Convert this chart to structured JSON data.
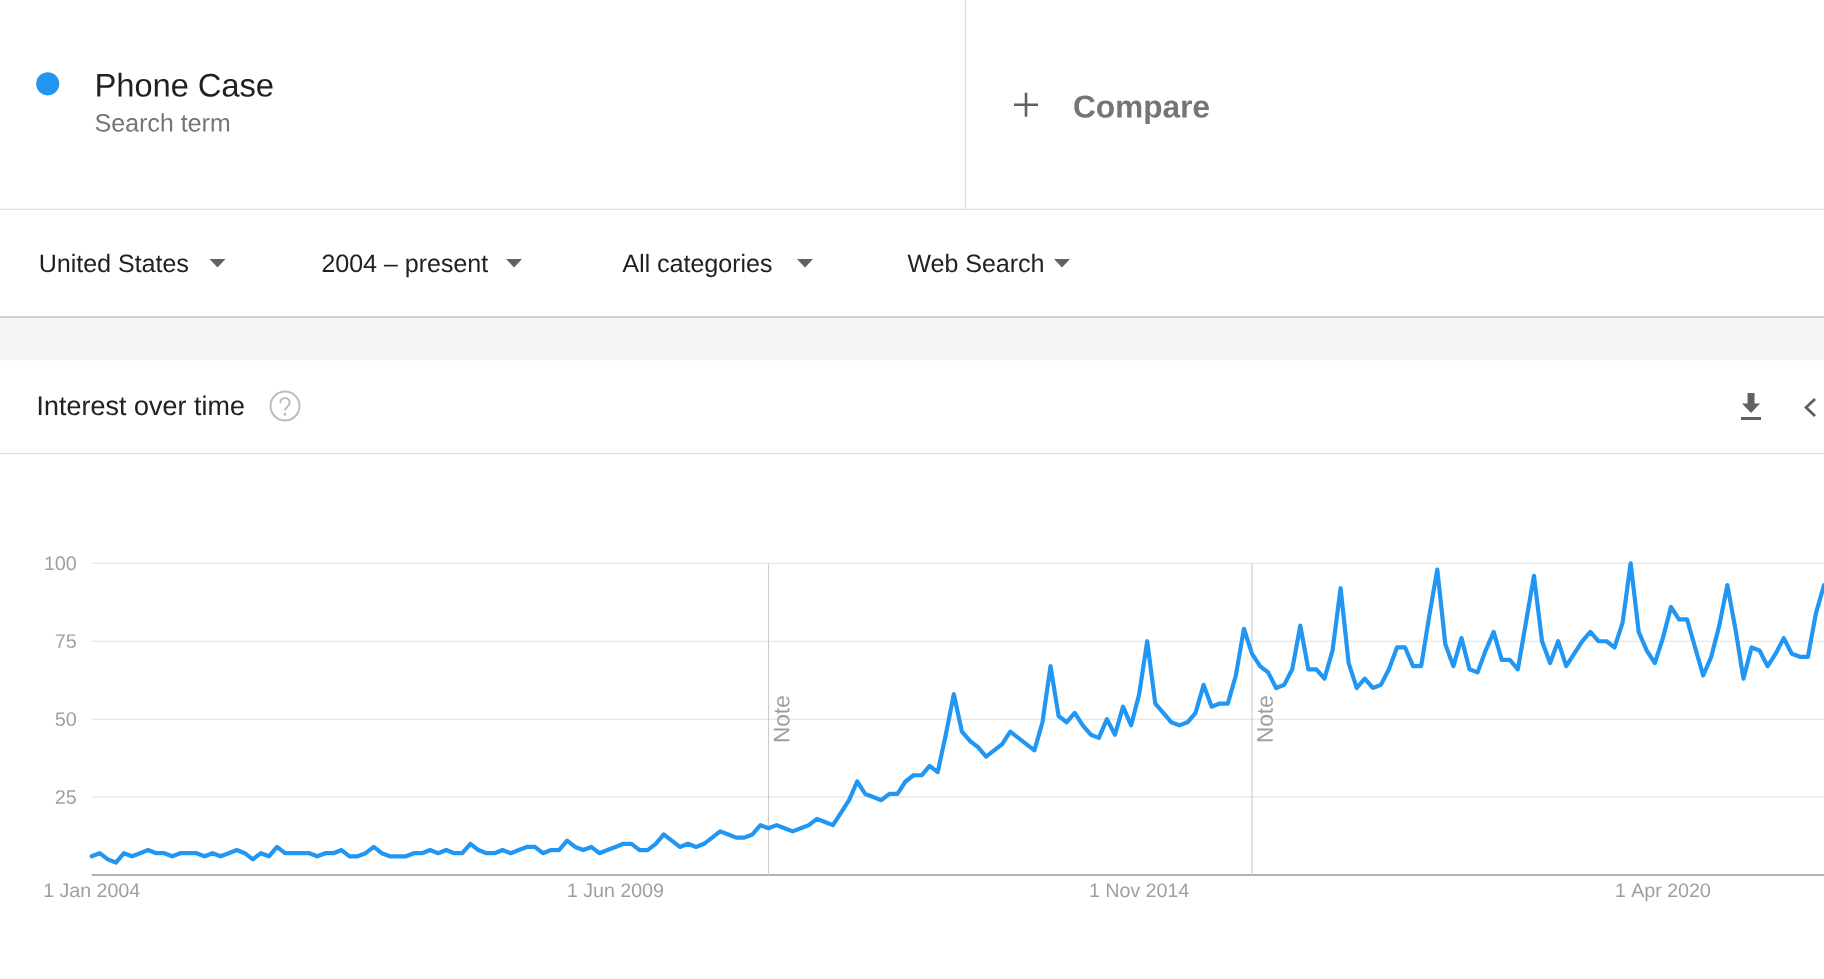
{
  "chart_data": {
    "type": "line",
    "title": "Interest over time",
    "annotations": [
      "Search term",
      "Compare",
      "United States",
      "2004 – present",
      "All categories",
      "Web Search"
    ],
    "x": [
      "2004-01",
      "2004-02",
      "2004-03",
      "2004-04",
      "2004-05",
      "2004-06",
      "2004-07",
      "2004-08",
      "2004-09",
      "2004-10",
      "2004-11",
      "2004-12",
      "2005-01",
      "2005-02",
      "2005-03",
      "2005-04",
      "2005-05",
      "2005-06",
      "2005-07",
      "2005-08",
      "2005-09",
      "2005-10",
      "2005-11",
      "2005-12",
      "2006-01",
      "2006-02",
      "2006-03",
      "2006-04",
      "2006-05",
      "2006-06",
      "2006-07",
      "2006-08",
      "2006-09",
      "2006-10",
      "2006-11",
      "2006-12",
      "2007-01",
      "2007-02",
      "2007-03",
      "2007-04",
      "2007-05",
      "2007-06",
      "2007-07",
      "2007-08",
      "2007-09",
      "2007-10",
      "2007-11",
      "2007-12",
      "2008-01",
      "2008-02",
      "2008-03",
      "2008-04",
      "2008-05",
      "2008-06",
      "2008-07",
      "2008-08",
      "2008-09",
      "2008-10",
      "2008-11",
      "2008-12",
      "2009-01",
      "2009-02",
      "2009-03",
      "2009-04",
      "2009-05",
      "2009-06",
      "2009-07",
      "2009-08",
      "2009-09",
      "2009-10",
      "2009-11",
      "2009-12",
      "2010-01",
      "2010-02",
      "2010-03",
      "2010-04",
      "2010-05",
      "2010-06",
      "2010-07",
      "2010-08",
      "2010-09",
      "2010-10",
      "2010-11",
      "2010-12",
      "2011-01",
      "2011-02",
      "2011-03",
      "2011-04",
      "2011-05",
      "2011-06",
      "2011-07",
      "2011-08",
      "2011-09",
      "2011-10",
      "2011-11",
      "2011-12",
      "2012-01",
      "2012-02",
      "2012-03",
      "2012-04",
      "2012-05",
      "2012-06",
      "2012-07",
      "2012-08",
      "2012-09",
      "2012-10",
      "2012-11",
      "2012-12",
      "2013-01",
      "2013-02",
      "2013-03",
      "2013-04",
      "2013-05",
      "2013-06",
      "2013-07",
      "2013-08",
      "2013-09",
      "2013-10",
      "2013-11",
      "2013-12",
      "2014-01",
      "2014-02",
      "2014-03",
      "2014-04",
      "2014-05",
      "2014-06",
      "2014-07",
      "2014-08",
      "2014-09",
      "2014-10",
      "2014-11",
      "2014-12",
      "2015-01",
      "2015-02",
      "2015-03",
      "2015-04",
      "2015-05",
      "2015-06",
      "2015-07",
      "2015-08",
      "2015-09",
      "2015-10",
      "2015-11",
      "2015-12",
      "2016-01",
      "2016-02",
      "2016-03",
      "2016-04",
      "2016-05",
      "2016-06",
      "2016-07",
      "2016-08",
      "2016-09",
      "2016-10",
      "2016-11",
      "2016-12",
      "2017-01",
      "2017-02",
      "2017-03",
      "2017-04",
      "2017-05",
      "2017-06",
      "2017-07",
      "2017-08",
      "2017-09",
      "2017-10",
      "2017-11",
      "2017-12",
      "2018-01",
      "2018-02",
      "2018-03",
      "2018-04",
      "2018-05",
      "2018-06",
      "2018-07",
      "2018-08",
      "2018-09",
      "2018-10",
      "2018-11",
      "2018-12",
      "2019-01",
      "2019-02",
      "2019-03",
      "2019-04",
      "2019-05",
      "2019-06",
      "2019-07",
      "2019-08",
      "2019-09",
      "2019-10",
      "2019-11",
      "2019-12",
      "2020-01",
      "2020-02",
      "2020-03",
      "2020-04",
      "2020-05",
      "2020-06",
      "2020-07",
      "2020-08",
      "2020-09",
      "2020-10",
      "2020-11",
      "2020-12",
      "2021-01",
      "2021-02",
      "2021-03",
      "2021-04",
      "2021-05",
      "2021-06",
      "2021-07",
      "2021-08",
      "2021-09",
      "2021-10",
      "2021-11",
      "2021-12"
    ],
    "series": [
      {
        "name": "Phone Case",
        "color": "#2196f3",
        "values": [
          6,
          7,
          5,
          4,
          7,
          6,
          7,
          8,
          7,
          7,
          6,
          7,
          7,
          7,
          6,
          7,
          6,
          7,
          8,
          7,
          5,
          7,
          6,
          9,
          7,
          7,
          7,
          7,
          6,
          7,
          7,
          8,
          6,
          6,
          7,
          9,
          7,
          6,
          6,
          6,
          7,
          7,
          8,
          7,
          8,
          7,
          7,
          10,
          8,
          7,
          7,
          8,
          7,
          8,
          9,
          9,
          7,
          8,
          8,
          11,
          9,
          8,
          9,
          7,
          8,
          9,
          10,
          10,
          8,
          8,
          10,
          13,
          11,
          9,
          10,
          9,
          10,
          12,
          14,
          13,
          12,
          12,
          13,
          16,
          15,
          16,
          15,
          14,
          15,
          16,
          18,
          17,
          16,
          20,
          24,
          30,
          26,
          25,
          24,
          26,
          26,
          30,
          32,
          32,
          35,
          33,
          45,
          58,
          46,
          43,
          41,
          38,
          40,
          42,
          46,
          44,
          42,
          40,
          49,
          67,
          51,
          49,
          52,
          48,
          45,
          44,
          50,
          45,
          54,
          48,
          58,
          75,
          55,
          52,
          49,
          48,
          49,
          52,
          61,
          54,
          55,
          55,
          64,
          79,
          71,
          67,
          65,
          60,
          61,
          66,
          80,
          66,
          66,
          63,
          72,
          92,
          68,
          60,
          63,
          60,
          61,
          66,
          73,
          73,
          67,
          67,
          83,
          98,
          74,
          67,
          76,
          66,
          65,
          72,
          78,
          69,
          69,
          66,
          81,
          96,
          75,
          68,
          75,
          67,
          71,
          75,
          78,
          75,
          75,
          73,
          81,
          100,
          78,
          72,
          68,
          76,
          86,
          82,
          82,
          73,
          64,
          70,
          80,
          93,
          79,
          63,
          73,
          72,
          67,
          71,
          76,
          71,
          70,
          70,
          84,
          93
        ]
      }
    ],
    "xlim": [
      "2004-01",
      "2021-12"
    ],
    "ylim": [
      0,
      100
    ],
    "xticks": [
      {
        "value": "2004-01",
        "label": "1 Jan 2004"
      },
      {
        "value": "2009-06",
        "label": "1 Jun 2009"
      },
      {
        "value": "2014-11",
        "label": "1 Nov 2014"
      },
      {
        "value": "2020-04",
        "label": "1 Apr 2020"
      }
    ],
    "yticks": [
      25,
      50,
      75,
      100
    ],
    "grid": "y",
    "legend": "top left",
    "ref_lines": [
      {
        "axis": "x",
        "value": "2011-01",
        "label": "Note"
      },
      {
        "axis": "x",
        "value": "2016-01",
        "label": "Note"
      }
    ]
  }
}
